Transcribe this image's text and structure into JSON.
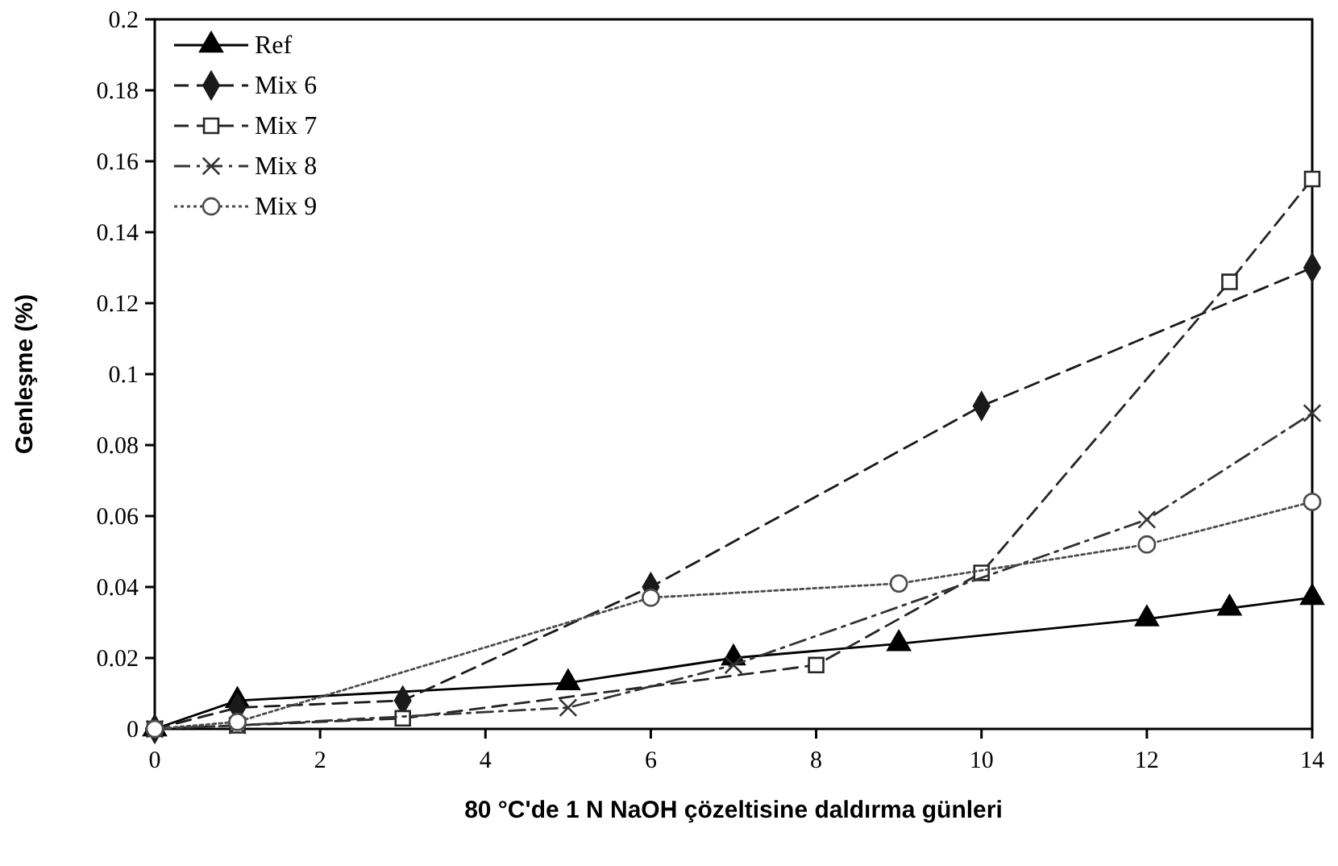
{
  "chart_data": {
    "type": "line",
    "xlabel": "80 °C'de 1 N NaOH çözeltisine daldırma günleri",
    "ylabel": "Genleşme (%)",
    "xlim": [
      0,
      14
    ],
    "xticks": [
      0,
      2,
      4,
      6,
      8,
      10,
      12,
      14
    ],
    "ylim": [
      0,
      0.2
    ],
    "yticks": [
      0,
      0.02,
      0.04,
      0.06,
      0.08,
      0.1,
      0.12,
      0.14,
      0.16,
      0.18,
      0.2
    ],
    "legend": "top left",
    "grid": false,
    "series": [
      {
        "name": "Ref",
        "color": "#000000",
        "marker": "triangle",
        "line_style": "solid",
        "x": [
          0,
          1,
          5,
          7,
          9,
          12,
          13,
          14
        ],
        "values": [
          0,
          0.008,
          0.013,
          0.02,
          0.024,
          0.031,
          0.034,
          0.037
        ]
      },
      {
        "name": "Mix 6",
        "color": "#1a1a1a",
        "marker": "diamond",
        "line_style": "dashed",
        "x": [
          0,
          1,
          3,
          6,
          10,
          14
        ],
        "values": [
          0,
          0.006,
          0.008,
          0.04,
          0.091,
          0.13
        ]
      },
      {
        "name": "Mix 7",
        "color": "#262626",
        "marker": "square",
        "line_style": "dashed",
        "x": [
          0,
          1,
          3,
          8,
          10,
          13,
          14
        ],
        "values": [
          0,
          0.001,
          0.003,
          0.018,
          0.044,
          0.126,
          0.155
        ]
      },
      {
        "name": "Mix 8",
        "color": "#333333",
        "marker": "cross",
        "line_style": "dashdot",
        "x": [
          0,
          1,
          5,
          7,
          12,
          14
        ],
        "values": [
          0,
          0.001,
          0.006,
          0.018,
          0.059,
          0.089
        ]
      },
      {
        "name": "Mix 9",
        "color": "#4d4d4d",
        "marker": "circle",
        "line_style": "dotted",
        "x": [
          0,
          1,
          6,
          9,
          12,
          14
        ],
        "values": [
          0,
          0.002,
          0.037,
          0.041,
          0.052,
          0.064
        ]
      }
    ]
  }
}
